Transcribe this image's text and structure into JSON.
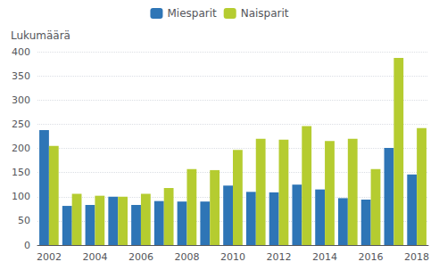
{
  "chart_data": {
    "type": "bar",
    "ylabel": "Lukumäärä",
    "categories": [
      "2002",
      null,
      "2004",
      null,
      "2006",
      null,
      "2008",
      null,
      "2010",
      null,
      "2012",
      null,
      "2014",
      null,
      "2016",
      null,
      "2018"
    ],
    "series": [
      {
        "name": "Miesparit",
        "color": "#2e75b6",
        "values": [
          238,
          81,
          83,
          100,
          83,
          91,
          90,
          90,
          123,
          110,
          109,
          125,
          115,
          97,
          94,
          201,
          146
        ]
      },
      {
        "name": "Naisparit",
        "color": "#b5cc30",
        "values": [
          205,
          106,
          102,
          100,
          106,
          118,
          157,
          155,
          197,
          220,
          218,
          246,
          215,
          220,
          157,
          387,
          242
        ]
      }
    ],
    "ylim": [
      0,
      400
    ],
    "yticks": [
      0,
      50,
      100,
      150,
      200,
      250,
      300,
      350,
      400
    ],
    "grid": true,
    "legend": "top"
  }
}
